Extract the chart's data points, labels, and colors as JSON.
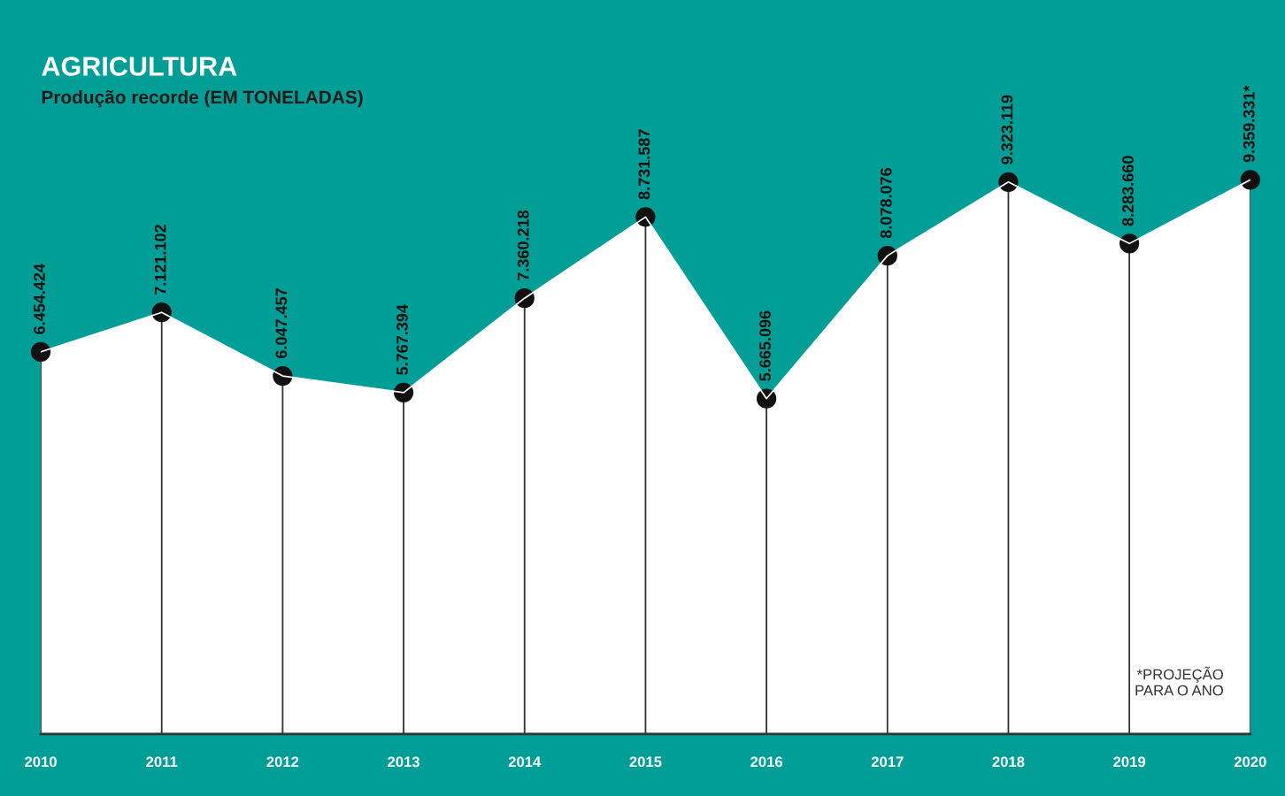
{
  "chart_data": {
    "type": "area",
    "title": "AGRICULTURA",
    "subtitle": "Produção recorde (EM TONELADAS)",
    "categories": [
      "2010",
      "2011",
      "2012",
      "2013",
      "2014",
      "2015",
      "2016",
      "2017",
      "2018",
      "2019",
      "2020"
    ],
    "series": [
      {
        "color": "#ffffff",
        "values": [
          6454424,
          7121102,
          6047457,
          5767394,
          7360218,
          8731587,
          5665096,
          8078076,
          9323119,
          8283660,
          9359331
        ]
      },
      {
        "type": "scatter",
        "marker": "circle",
        "color": "#111111",
        "values": [
          6454424,
          7121102,
          6047457,
          5767394,
          7360218,
          8731587,
          5665096,
          8078076,
          9323119,
          8283660,
          9359331
        ],
        "value_labels": [
          "6.454.424",
          "7.121.102",
          "6.047.457",
          "5.767.394",
          "7.360.218",
          "8.731.587",
          "5.665.096",
          "8.078.076",
          "9.323.119",
          "8.283.660",
          "9.359.331*"
        ]
      }
    ],
    "annotations": [
      "*PROJEÇÃO\nPARA O ANO"
    ],
    "grid": "x",
    "legend": false
  }
}
